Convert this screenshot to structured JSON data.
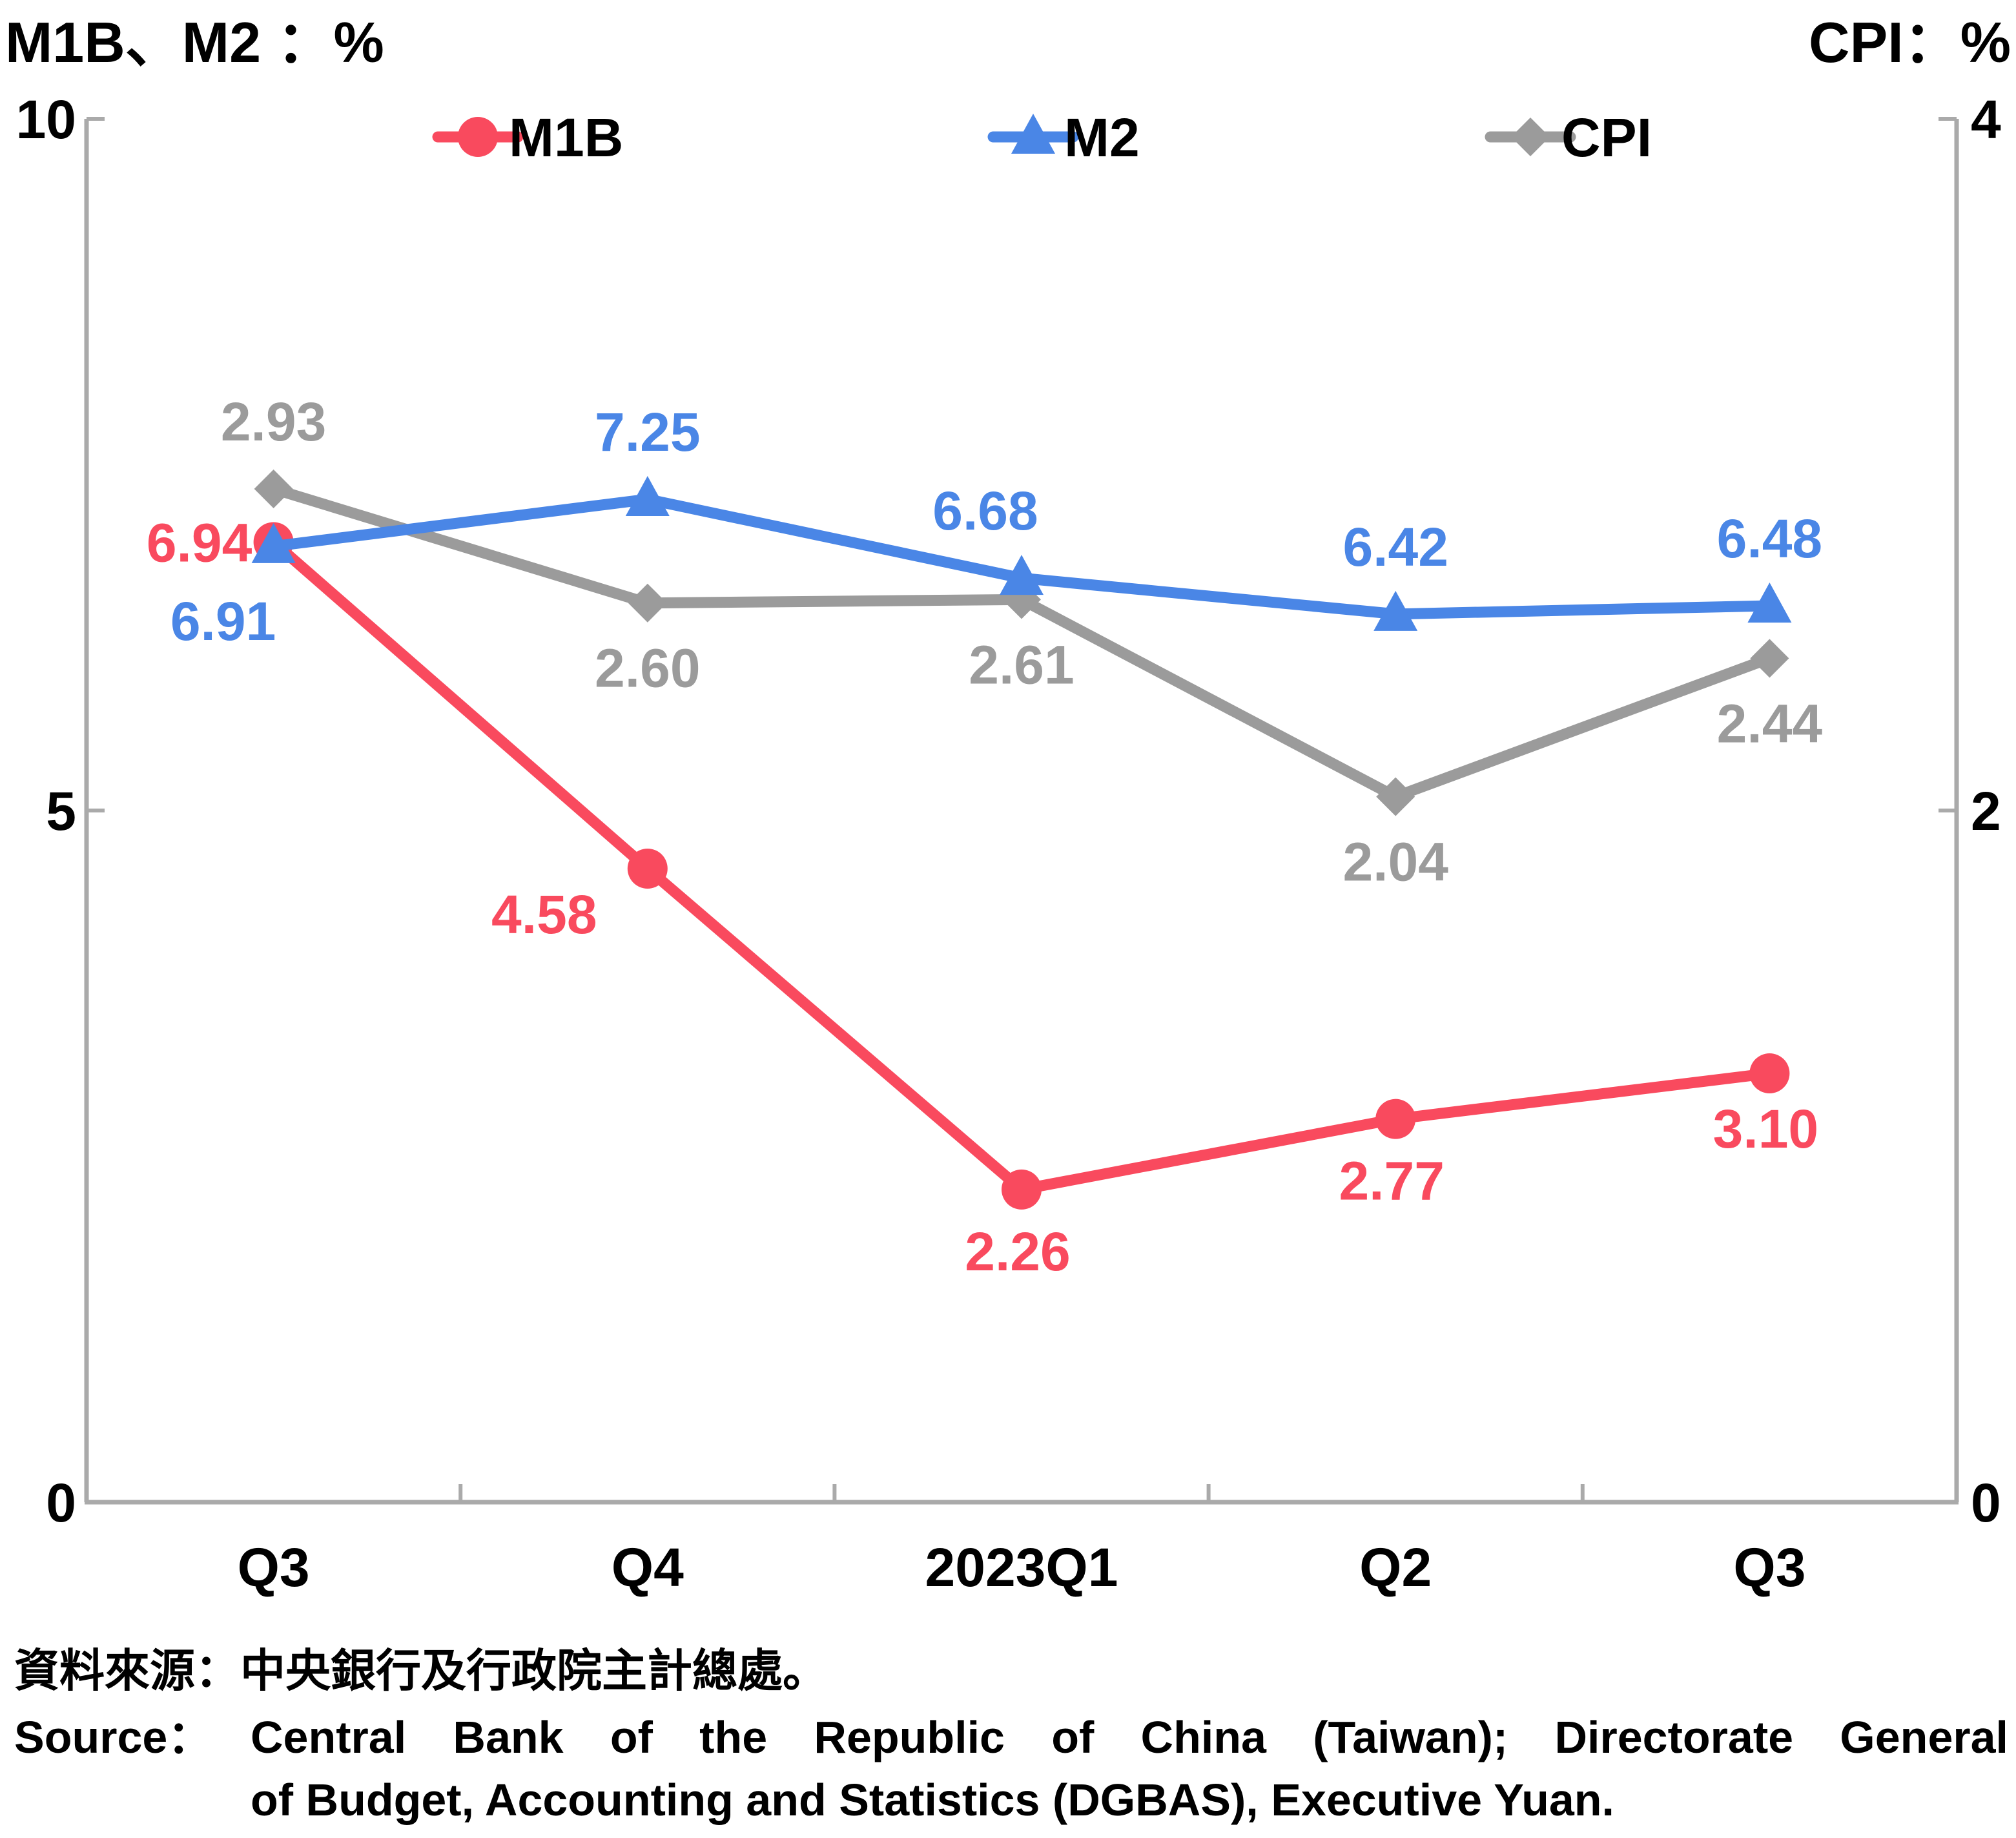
{
  "axes": {
    "left_unit": "M1B、M2 ：%",
    "right_unit": "CPI：%"
  },
  "source": {
    "zh": "資料來源：中央銀行及行政院主計總處。",
    "en_label": "Source：",
    "en_line1": "Central Bank of the Republic of China (Taiwan); Directorate General",
    "en_line2": "of Budget, Accounting and Statistics (DGBAS), Executive Yuan."
  },
  "chart_data": {
    "type": "line",
    "categories": [
      "Q3",
      "Q4",
      "2023Q1",
      "Q2",
      "Q3"
    ],
    "y_left": {
      "range": [
        0,
        10
      ],
      "ticks": [
        "0",
        "5",
        "10"
      ]
    },
    "y_right": {
      "range": [
        0,
        4
      ],
      "ticks": [
        "0",
        "2",
        "4"
      ]
    },
    "legend_position": "top",
    "grid": false,
    "series": [
      {
        "name": "M1B",
        "axis": "left",
        "marker": "circle",
        "color": "#f94a5e",
        "values": [
          6.94,
          4.58,
          2.26,
          2.77,
          3.1
        ],
        "labels": [
          "6.94",
          "4.58",
          "2.26",
          "2.77",
          "3.10"
        ]
      },
      {
        "name": "M2",
        "axis": "left",
        "marker": "triangle",
        "color": "#4a86e6",
        "values": [
          6.91,
          7.25,
          6.68,
          6.42,
          6.48
        ],
        "labels": [
          "6.91",
          "7.25",
          "6.68",
          "6.42",
          "6.48"
        ]
      },
      {
        "name": "CPI",
        "axis": "right",
        "marker": "diamond",
        "color": "#9b9b9b",
        "values": [
          2.93,
          2.6,
          2.61,
          2.04,
          2.44
        ],
        "labels": [
          "2.93",
          "2.60",
          "2.61",
          "2.04",
          "2.44"
        ]
      }
    ]
  }
}
